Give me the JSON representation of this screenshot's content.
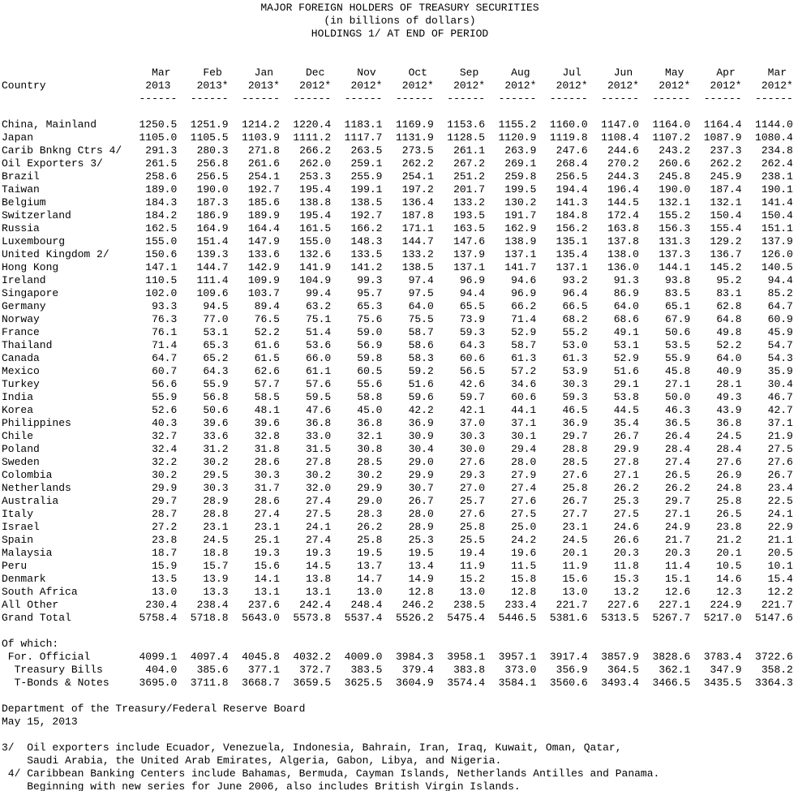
{
  "title": {
    "line1": "MAJOR FOREIGN HOLDERS OF TREASURY SECURITIES",
    "line2": "(in billions of dollars)",
    "line3": "HOLDINGS 1/ AT END OF PERIOD"
  },
  "table": {
    "country_header": "Country",
    "dash": "------",
    "columns": [
      {
        "month": "Mar",
        "year": "2013"
      },
      {
        "month": "Feb",
        "year": "2013*"
      },
      {
        "month": "Jan",
        "year": "2013*"
      },
      {
        "month": "Dec",
        "year": "2012*"
      },
      {
        "month": "Nov",
        "year": "2012*"
      },
      {
        "month": "Oct",
        "year": "2012*"
      },
      {
        "month": "Sep",
        "year": "2012*"
      },
      {
        "month": "Aug",
        "year": "2012*"
      },
      {
        "month": "Jul",
        "year": "2012*"
      },
      {
        "month": "Jun",
        "year": "2012*"
      },
      {
        "month": "May",
        "year": "2012*"
      },
      {
        "month": "Apr",
        "year": "2012*"
      },
      {
        "month": "Mar",
        "year": "2012*"
      }
    ],
    "rows": [
      {
        "country": "China, Mainland",
        "values": [
          "1250.5",
          "1251.9",
          "1214.2",
          "1220.4",
          "1183.1",
          "1169.9",
          "1153.6",
          "1155.2",
          "1160.0",
          "1147.0",
          "1164.0",
          "1164.4",
          "1144.0"
        ]
      },
      {
        "country": "Japan",
        "values": [
          "1105.0",
          "1105.5",
          "1103.9",
          "1111.2",
          "1117.7",
          "1131.9",
          "1128.5",
          "1120.9",
          "1119.8",
          "1108.4",
          "1107.2",
          "1087.9",
          "1080.4"
        ]
      },
      {
        "country": "Carib Bnkng Ctrs 4/",
        "values": [
          "291.3",
          "280.3",
          "271.8",
          "266.2",
          "263.5",
          "273.5",
          "261.1",
          "263.9",
          "247.6",
          "244.6",
          "243.2",
          "237.3",
          "234.8"
        ]
      },
      {
        "country": "Oil Exporters 3/",
        "values": [
          "261.5",
          "256.8",
          "261.6",
          "262.0",
          "259.1",
          "262.2",
          "267.2",
          "269.1",
          "268.4",
          "270.2",
          "260.6",
          "262.2",
          "262.4"
        ]
      },
      {
        "country": "Brazil",
        "values": [
          "258.6",
          "256.5",
          "254.1",
          "253.3",
          "255.9",
          "254.1",
          "251.2",
          "259.8",
          "256.5",
          "244.3",
          "245.8",
          "245.9",
          "238.1"
        ]
      },
      {
        "country": "Taiwan",
        "values": [
          "189.0",
          "190.0",
          "192.7",
          "195.4",
          "199.1",
          "197.2",
          "201.7",
          "199.5",
          "194.4",
          "196.4",
          "190.0",
          "187.4",
          "190.1"
        ]
      },
      {
        "country": "Belgium",
        "values": [
          "184.3",
          "187.3",
          "185.6",
          "138.8",
          "138.5",
          "136.4",
          "133.2",
          "130.2",
          "141.3",
          "144.5",
          "132.1",
          "132.1",
          "141.4"
        ]
      },
      {
        "country": "Switzerland",
        "values": [
          "184.2",
          "186.9",
          "189.9",
          "195.4",
          "192.7",
          "187.8",
          "193.5",
          "191.7",
          "184.8",
          "172.4",
          "155.2",
          "150.4",
          "150.4"
        ]
      },
      {
        "country": "Russia",
        "values": [
          "162.5",
          "164.9",
          "164.4",
          "161.5",
          "166.2",
          "171.1",
          "163.5",
          "162.9",
          "156.2",
          "163.8",
          "156.3",
          "155.4",
          "151.1"
        ]
      },
      {
        "country": "Luxembourg",
        "values": [
          "155.0",
          "151.4",
          "147.9",
          "155.0",
          "148.3",
          "144.7",
          "147.6",
          "138.9",
          "135.1",
          "137.8",
          "131.3",
          "129.2",
          "137.9"
        ]
      },
      {
        "country": "United Kingdom 2/",
        "values": [
          "150.6",
          "139.3",
          "133.6",
          "132.6",
          "133.5",
          "133.2",
          "137.9",
          "137.1",
          "135.4",
          "138.0",
          "137.3",
          "136.7",
          "126.0"
        ]
      },
      {
        "country": "Hong Kong",
        "values": [
          "147.1",
          "144.7",
          "142.9",
          "141.9",
          "141.2",
          "138.5",
          "137.1",
          "141.7",
          "137.1",
          "136.0",
          "144.1",
          "145.2",
          "140.5"
        ]
      },
      {
        "country": "Ireland",
        "values": [
          "110.5",
          "111.4",
          "109.9",
          "104.9",
          "99.3",
          "97.4",
          "96.9",
          "94.6",
          "93.2",
          "91.3",
          "93.8",
          "95.2",
          "94.4"
        ]
      },
      {
        "country": "Singapore",
        "values": [
          "102.0",
          "109.6",
          "103.7",
          "99.4",
          "95.7",
          "97.5",
          "94.4",
          "96.9",
          "96.4",
          "86.9",
          "83.5",
          "83.1",
          "85.2"
        ]
      },
      {
        "country": "Germany",
        "values": [
          "93.3",
          "94.5",
          "89.4",
          "63.2",
          "65.3",
          "64.0",
          "65.5",
          "66.2",
          "66.5",
          "64.0",
          "65.1",
          "62.8",
          "64.7"
        ]
      },
      {
        "country": "Norway",
        "values": [
          "76.3",
          "77.0",
          "76.5",
          "75.1",
          "75.6",
          "75.5",
          "73.9",
          "71.4",
          "68.2",
          "68.6",
          "67.9",
          "64.8",
          "60.9"
        ]
      },
      {
        "country": "France",
        "values": [
          "76.1",
          "53.1",
          "52.2",
          "51.4",
          "59.0",
          "58.7",
          "59.3",
          "52.9",
          "55.2",
          "49.1",
          "50.6",
          "49.8",
          "45.9"
        ]
      },
      {
        "country": "Thailand",
        "values": [
          "71.4",
          "65.3",
          "61.6",
          "53.6",
          "56.9",
          "58.6",
          "64.3",
          "58.7",
          "53.0",
          "53.1",
          "53.5",
          "52.2",
          "54.7"
        ]
      },
      {
        "country": "Canada",
        "values": [
          "64.7",
          "65.2",
          "61.5",
          "66.0",
          "59.8",
          "58.3",
          "60.6",
          "61.3",
          "61.3",
          "52.9",
          "55.9",
          "64.0",
          "54.3"
        ]
      },
      {
        "country": "Mexico",
        "values": [
          "60.7",
          "64.3",
          "62.6",
          "61.1",
          "60.5",
          "59.2",
          "56.5",
          "57.2",
          "53.9",
          "51.6",
          "45.8",
          "40.9",
          "35.9"
        ]
      },
      {
        "country": "Turkey",
        "values": [
          "56.6",
          "55.9",
          "57.7",
          "57.6",
          "55.6",
          "51.6",
          "42.6",
          "34.6",
          "30.3",
          "29.1",
          "27.1",
          "28.1",
          "30.4"
        ]
      },
      {
        "country": "India",
        "values": [
          "55.9",
          "56.8",
          "58.5",
          "59.5",
          "58.8",
          "59.6",
          "59.7",
          "60.6",
          "59.3",
          "53.8",
          "50.0",
          "49.3",
          "46.7"
        ]
      },
      {
        "country": "Korea",
        "values": [
          "52.6",
          "50.6",
          "48.1",
          "47.6",
          "45.0",
          "42.2",
          "42.1",
          "44.1",
          "46.5",
          "44.5",
          "46.3",
          "43.9",
          "42.7"
        ]
      },
      {
        "country": "Philippines",
        "values": [
          "40.3",
          "39.6",
          "39.6",
          "36.8",
          "36.8",
          "36.9",
          "37.0",
          "37.1",
          "36.9",
          "35.4",
          "36.5",
          "36.8",
          "37.1"
        ]
      },
      {
        "country": "Chile",
        "values": [
          "32.7",
          "33.6",
          "32.8",
          "33.0",
          "32.1",
          "30.9",
          "30.3",
          "30.1",
          "29.7",
          "26.7",
          "26.4",
          "24.5",
          "21.9"
        ]
      },
      {
        "country": "Poland",
        "values": [
          "32.4",
          "31.2",
          "31.8",
          "31.5",
          "30.8",
          "30.4",
          "30.0",
          "29.4",
          "28.8",
          "29.9",
          "28.4",
          "28.4",
          "27.5"
        ]
      },
      {
        "country": "Sweden",
        "values": [
          "32.2",
          "30.2",
          "28.6",
          "27.8",
          "28.5",
          "29.0",
          "27.6",
          "28.0",
          "28.5",
          "27.8",
          "27.4",
          "27.6",
          "27.6"
        ]
      },
      {
        "country": "Colombia",
        "values": [
          "30.2",
          "29.5",
          "30.3",
          "30.2",
          "30.2",
          "29.9",
          "29.3",
          "27.9",
          "27.6",
          "27.1",
          "26.5",
          "26.9",
          "26.7"
        ]
      },
      {
        "country": "Netherlands",
        "values": [
          "29.9",
          "30.3",
          "31.7",
          "32.0",
          "29.9",
          "30.7",
          "27.0",
          "27.4",
          "25.8",
          "26.2",
          "26.2",
          "24.8",
          "23.4"
        ]
      },
      {
        "country": "Australia",
        "values": [
          "29.7",
          "28.9",
          "28.6",
          "27.4",
          "29.0",
          "26.7",
          "25.7",
          "27.6",
          "26.7",
          "25.3",
          "29.7",
          "25.8",
          "22.5"
        ]
      },
      {
        "country": "Italy",
        "values": [
          "28.7",
          "28.8",
          "27.4",
          "27.5",
          "28.3",
          "28.0",
          "27.6",
          "27.5",
          "27.7",
          "27.5",
          "27.1",
          "26.5",
          "24.1"
        ]
      },
      {
        "country": "Israel",
        "values": [
          "27.2",
          "23.1",
          "23.1",
          "24.1",
          "26.2",
          "28.9",
          "25.8",
          "25.0",
          "23.1",
          "24.6",
          "24.9",
          "23.8",
          "22.9"
        ]
      },
      {
        "country": "Spain",
        "values": [
          "23.8",
          "24.5",
          "25.1",
          "27.4",
          "25.8",
          "25.3",
          "25.5",
          "24.2",
          "24.5",
          "26.6",
          "21.7",
          "21.2",
          "21.1"
        ]
      },
      {
        "country": "Malaysia",
        "values": [
          "18.7",
          "18.8",
          "19.3",
          "19.3",
          "19.5",
          "19.5",
          "19.4",
          "19.6",
          "20.1",
          "20.3",
          "20.3",
          "20.1",
          "20.5"
        ]
      },
      {
        "country": "Peru",
        "values": [
          "15.9",
          "15.7",
          "15.6",
          "14.5",
          "13.7",
          "13.4",
          "11.9",
          "11.5",
          "11.9",
          "11.8",
          "11.4",
          "10.5",
          "10.1"
        ]
      },
      {
        "country": "Denmark",
        "values": [
          "13.5",
          "13.9",
          "14.1",
          "13.8",
          "14.7",
          "14.9",
          "15.2",
          "15.8",
          "15.6",
          "15.3",
          "15.1",
          "14.6",
          "15.4"
        ]
      },
      {
        "country": "South Africa",
        "values": [
          "13.0",
          "13.3",
          "13.1",
          "13.1",
          "13.0",
          "12.8",
          "13.0",
          "12.8",
          "13.0",
          "13.2",
          "12.6",
          "12.3",
          "12.2"
        ]
      },
      {
        "country": "All Other",
        "values": [
          "230.4",
          "238.4",
          "237.6",
          "242.4",
          "248.4",
          "246.2",
          "238.5",
          "233.4",
          "221.7",
          "227.6",
          "227.1",
          "224.9",
          "221.7"
        ]
      },
      {
        "country": "Grand Total",
        "values": [
          "5758.4",
          "5718.8",
          "5643.0",
          "5573.8",
          "5537.4",
          "5526.2",
          "5475.4",
          "5446.5",
          "5381.6",
          "5313.5",
          "5267.7",
          "5217.0",
          "5147.6"
        ]
      }
    ]
  },
  "of_which": {
    "label": "Of which:",
    "rows": [
      {
        "country": " For. Official",
        "values": [
          "4099.1",
          "4097.4",
          "4045.8",
          "4032.2",
          "4009.0",
          "3984.3",
          "3958.1",
          "3957.1",
          "3917.4",
          "3857.9",
          "3828.6",
          "3783.4",
          "3722.6"
        ]
      },
      {
        "country": "  Treasury Bills",
        "values": [
          "404.0",
          "385.6",
          "377.1",
          "372.7",
          "383.5",
          "379.4",
          "383.8",
          "373.0",
          "356.9",
          "364.5",
          "362.1",
          "347.9",
          "358.2"
        ]
      },
      {
        "country": "  T-Bonds & Notes",
        "values": [
          "3695.0",
          "3711.8",
          "3668.7",
          "3659.5",
          "3625.5",
          "3604.9",
          "3574.4",
          "3584.1",
          "3560.6",
          "3493.4",
          "3466.5",
          "3435.5",
          "3364.3"
        ]
      }
    ]
  },
  "source": {
    "agency": "Department of the Treasury/Federal Reserve Board",
    "date": "May 15, 2013"
  },
  "footnotes": [
    "3/  Oil exporters include Ecuador, Venezuela, Indonesia, Bahrain, Iran, Iraq, Kuwait, Oman, Qatar,",
    "    Saudi Arabia, the United Arab Emirates, Algeria, Gabon, Libya, and Nigeria.",
    " 4/ Caribbean Banking Centers include Bahamas, Bermuda, Cayman Islands, Netherlands Antilles and Panama.",
    "    Beginning with new series for June 2006, also includes British Virgin Islands."
  ]
}
